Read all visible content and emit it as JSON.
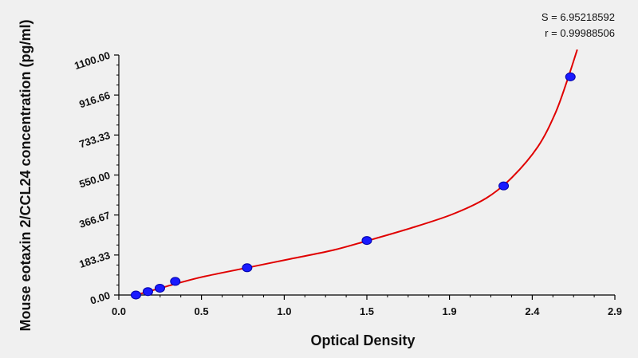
{
  "chart_data": {
    "type": "scatter",
    "title": "",
    "xlabel": "Optical Density",
    "ylabel": "Mouse eotaxin 2/CCL24 concentration (pg/ml)",
    "xlim": [
      0.0,
      2.9
    ],
    "ylim": [
      0.0,
      1100.0
    ],
    "x_ticks": [
      "0.0",
      "0.5",
      "1.0",
      "1.5",
      "1.9",
      "2.4",
      "2.9"
    ],
    "x_tick_values": [
      0.0,
      0.483,
      0.967,
      1.45,
      1.933,
      2.417,
      2.9
    ],
    "y_ticks": [
      "0.00",
      "183.33",
      "366.67",
      "550.00",
      "733.33",
      "916.66",
      "1100.00"
    ],
    "y_tick_values": [
      0.0,
      183.33,
      366.67,
      550.0,
      733.33,
      916.66,
      1100.0
    ],
    "grid": false,
    "stats": [
      "S = 6.95218592",
      "r = 0.99988506"
    ],
    "series": [
      {
        "kind": "points",
        "color": "#1a1aff",
        "x": [
          0.1,
          0.17,
          0.24,
          0.33,
          0.75,
          1.45,
          2.25,
          2.64
        ],
        "y": [
          0.0,
          15.6,
          31.2,
          62.5,
          125.0,
          250.0,
          500.0,
          1000.0
        ]
      },
      {
        "kind": "fit-curve",
        "color": "#e00000",
        "x": [
          0.1,
          0.2,
          0.35,
          0.5,
          0.75,
          1.0,
          1.25,
          1.45,
          1.7,
          1.95,
          2.15,
          2.3,
          2.45,
          2.55,
          2.62,
          2.68
        ],
        "y": [
          0.0,
          22.0,
          55.0,
          85.0,
          125.0,
          165.0,
          205.0,
          248.0,
          305.0,
          370.0,
          445.0,
          540.0,
          680.0,
          830.0,
          980.0,
          1125.0
        ]
      }
    ]
  }
}
